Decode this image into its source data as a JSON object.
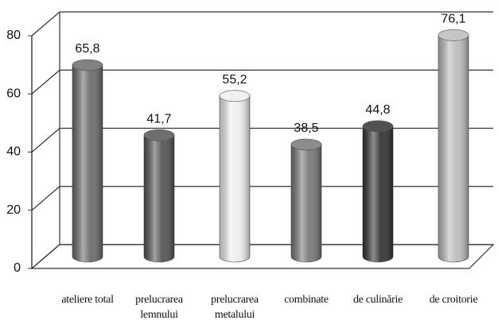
{
  "chart_data": {
    "type": "bar",
    "categories": [
      "ateliere total",
      "prelucrarea lemnului",
      "prelucrarea metalului",
      "combinate",
      "de culinărie",
      "de croitorie"
    ],
    "values": [
      65.8,
      41.7,
      55.2,
      38.5,
      44.8,
      76.1
    ],
    "value_labels": [
      "65,8",
      "41,7",
      "55,2",
      "38,5",
      "44,8",
      "76,1"
    ],
    "colors": [
      "#6c6c6c",
      "#555555",
      "#eeeeee",
      "#787878",
      "#333333",
      "#bdbdbd"
    ],
    "ylim": [
      0,
      80
    ],
    "yticks": [
      0,
      20,
      40,
      60,
      80
    ],
    "grid": true
  }
}
